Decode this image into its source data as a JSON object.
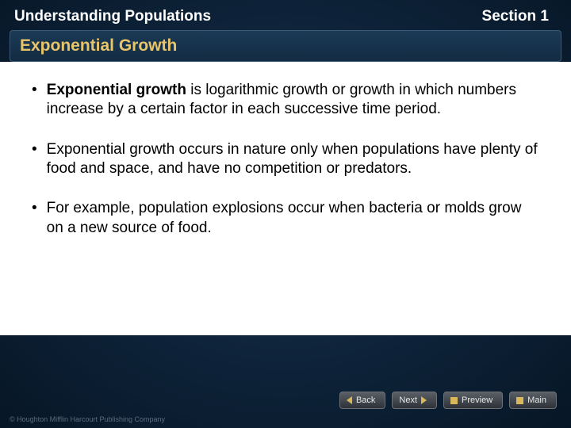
{
  "header": {
    "chapter_title": "Understanding Populations",
    "section_label": "Section 1"
  },
  "topic": {
    "title": "Exponential Growth"
  },
  "bullets": [
    {
      "bold_prefix": "Exponential growth",
      "rest": " is logarithmic growth or growth in which numbers increase by a certain factor in each successive time period."
    },
    {
      "bold_prefix": "",
      "rest": "Exponential growth occurs in nature only when populations have plenty of food and space, and have no competition or predators."
    },
    {
      "bold_prefix": "",
      "rest": "For example, population explosions occur when bacteria or molds grow on a new source of food."
    }
  ],
  "nav": {
    "back": "Back",
    "next": "Next",
    "preview": "Preview",
    "main": "Main"
  },
  "copyright": "© Houghton Mifflin Harcourt Publishing Company",
  "colors": {
    "topic_title": "#e8c56a",
    "slide_bg_inner": "#1a3450",
    "slide_bg_outer": "#071626",
    "content_bg": "#ffffff",
    "nav_accent": "#d8b85a"
  }
}
